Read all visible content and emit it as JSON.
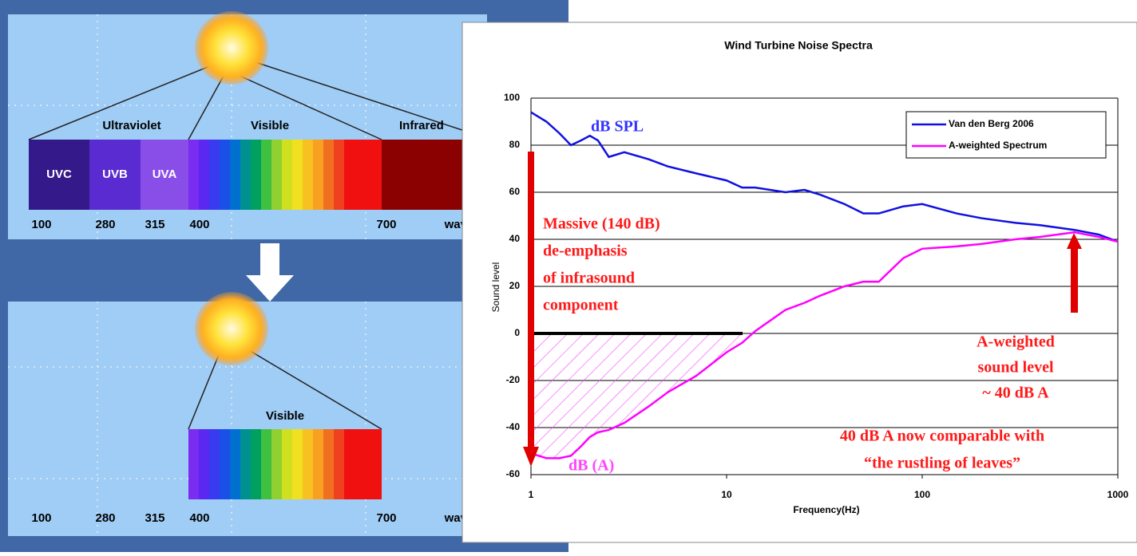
{
  "top_panel": {
    "band_labels": [
      "Ultraviolet",
      "Visible",
      "Infrared"
    ],
    "segments": [
      "UVC",
      "UVB",
      "UVA"
    ],
    "scale_labels": [
      "100",
      "280",
      "315",
      "400",
      "700",
      "wave"
    ]
  },
  "bottom_panel": {
    "band_label": "Visible",
    "scale_labels": [
      "100",
      "280",
      "315",
      "400",
      "700",
      "wave"
    ]
  },
  "chart_data": {
    "type": "line",
    "title": "Wind Turbine Noise Spectra",
    "x_label": "Frequency(Hz)",
    "y_label": "Sound level",
    "x": [
      1,
      1.2,
      1.4,
      1.6,
      1.8,
      2,
      2.2,
      2.5,
      3,
      4,
      5,
      7,
      10,
      12,
      14,
      20,
      25,
      30,
      40,
      50,
      60,
      80,
      100,
      150,
      200,
      300,
      400,
      600,
      800,
      1000
    ],
    "series": [
      {
        "name": "Van den Berg 2006",
        "color": "#1010e0",
        "values": [
          94,
          90,
          85,
          80,
          82,
          84,
          82,
          75,
          77,
          74,
          71,
          68,
          65,
          62,
          62,
          60,
          61,
          59,
          55,
          51,
          51,
          54,
          55,
          51,
          49,
          47,
          46,
          44,
          42,
          39
        ]
      },
      {
        "name": "A-weighted Spectrum",
        "color": "#ff00ff",
        "values": [
          -51,
          -53,
          -53,
          -52,
          -48,
          -44,
          -42,
          -41,
          -38,
          -31,
          -25,
          -18,
          -8,
          -4,
          1,
          10,
          13,
          16,
          20,
          22,
          22,
          32,
          36,
          37,
          38,
          40,
          41,
          43,
          41,
          39
        ]
      }
    ],
    "xscale": "log",
    "xlim": [
      1,
      1000
    ],
    "xticks": [
      1,
      10,
      100,
      1000
    ],
    "ylim": [
      -60,
      100
    ],
    "yticks": [
      -60,
      -40,
      -20,
      0,
      20,
      40,
      60,
      80,
      100
    ],
    "grid": true,
    "legend": "upper right",
    "annotations": [
      {
        "text": "dB SPL",
        "color": "#3333ff"
      },
      {
        "text": "Massive (140 dB)",
        "color": "#ff1a1a"
      },
      {
        "text": "de-emphasis",
        "color": "#ff1a1a"
      },
      {
        "text": "of infrasound",
        "color": "#ff1a1a"
      },
      {
        "text": "component",
        "color": "#ff1a1a"
      },
      {
        "text": "A-weighted",
        "color": "#ff1a1a"
      },
      {
        "text": "sound level",
        "color": "#ff1a1a"
      },
      {
        "text": "~ 40 dB A",
        "color": "#ff1a1a"
      },
      {
        "text": "40 dB A now comparable with",
        "color": "#ff1a1a"
      },
      {
        "text": "“the rustling of leaves”",
        "color": "#ff1a1a"
      },
      {
        "text": "dB (A)",
        "color": "#ff44ff"
      }
    ]
  }
}
